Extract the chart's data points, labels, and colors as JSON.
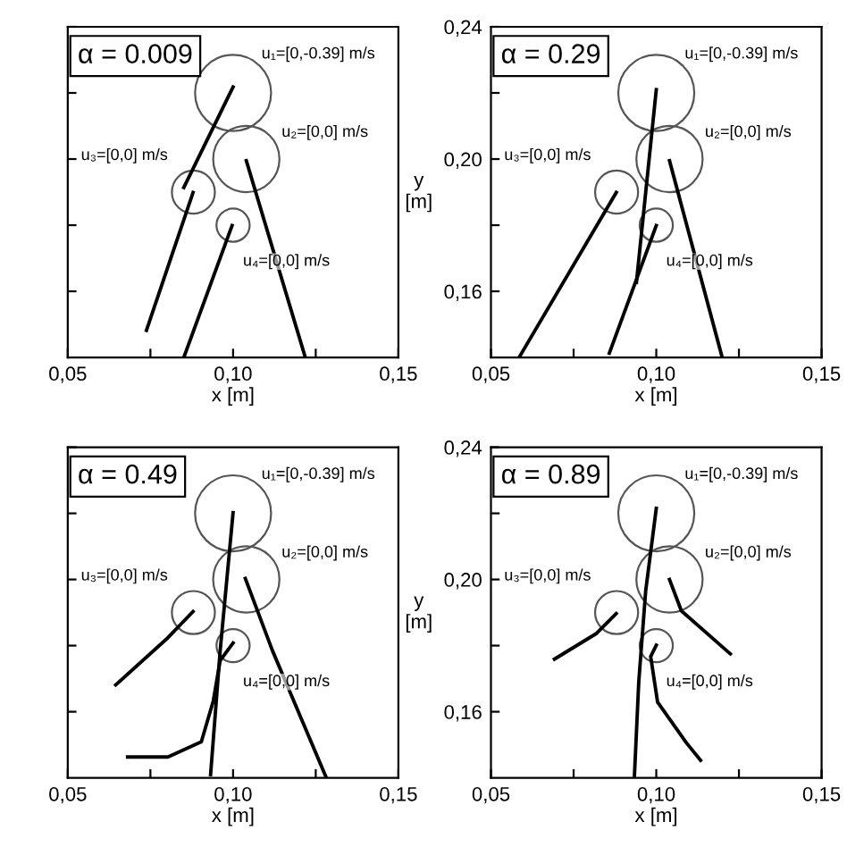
{
  "chart_data": [
    {
      "type": "line",
      "title": "α = 0.009",
      "xlabel": "x [m]",
      "tick_labels": "x",
      "xlim": [
        0.05,
        0.15
      ],
      "ylim": [
        0.14,
        0.24
      ],
      "xticks": [
        {
          "value": 0.05,
          "label": "0,05"
        },
        {
          "value": 0.075,
          "label": null
        },
        {
          "value": 0.1,
          "label": "0,10"
        },
        {
          "value": 0.125,
          "label": null
        },
        {
          "value": 0.15,
          "label": "0,15"
        }
      ],
      "yticks": [
        {
          "value": 0.16,
          "label": null
        },
        {
          "value": 0.18,
          "label": null
        },
        {
          "value": 0.2,
          "label": null
        },
        {
          "value": 0.22,
          "label": null
        },
        {
          "value": 0.24,
          "label": null
        }
      ],
      "series": [
        {
          "type": "bubble",
          "color": "#555555",
          "x": [
            0.1,
            0.104,
            0.088,
            0.1
          ],
          "values": [
            0.22,
            0.2,
            0.19,
            0.18
          ],
          "sizes": [
            1,
            0.76,
            0.32,
            0.19
          ]
        },
        {
          "color": "#000000",
          "x": [
            0.1,
            0.0851
          ],
          "values": [
            0.2218,
            0.1914
          ]
        },
        {
          "color": "#000000",
          "x": [
            0.104,
            0.1217
          ],
          "values": [
            0.1995,
            0.1405
          ]
        },
        {
          "color": "#000000",
          "x": [
            0.0879,
            0.0738
          ],
          "values": [
            0.1899,
            0.1482
          ]
        },
        {
          "color": "#000000",
          "x": [
            0.0997,
            0.0851
          ],
          "values": [
            0.1799,
            0.14
          ]
        }
      ],
      "annotations": [
        "u₁=[0,-0.39] m/s",
        "u₂=[0,0] m/s",
        "u₃=[0,0] m/s",
        "u₄=[0,0] m/s"
      ]
    },
    {
      "type": "line",
      "title": "α = 0.29",
      "xlabel": "x [m]",
      "ylabel": "y\n[m]",
      "xlim": [
        0.05,
        0.15
      ],
      "ylim": [
        0.14,
        0.24
      ],
      "xticks": [
        {
          "value": 0.05,
          "label": "0,05"
        },
        {
          "value": 0.075,
          "label": null
        },
        {
          "value": 0.1,
          "label": "0,10"
        },
        {
          "value": 0.125,
          "label": null
        },
        {
          "value": 0.15,
          "label": "0,15"
        }
      ],
      "yticks": [
        {
          "value": 0.16,
          "label": "0,16"
        },
        {
          "value": 0.18,
          "label": null
        },
        {
          "value": 0.2,
          "label": "0,20"
        },
        {
          "value": 0.22,
          "label": null
        },
        {
          "value": 0.24,
          "label": "0,24"
        }
      ],
      "series": [
        {
          "type": "bubble",
          "color": "#555555",
          "x": [
            0.1,
            0.104,
            0.088,
            0.1
          ],
          "values": [
            0.22,
            0.2,
            0.19,
            0.18
          ],
          "sizes": [
            1,
            0.76,
            0.32,
            0.19
          ]
        },
        {
          "color": "#000000",
          "x": [
            0.1,
            0.094
          ],
          "values": [
            0.221,
            0.1627
          ]
        },
        {
          "color": "#000000",
          "x": [
            0.104,
            0.1198
          ],
          "values": [
            0.1995,
            0.1405
          ]
        },
        {
          "color": "#000000",
          "x": [
            0.0879,
            0.0588
          ],
          "values": [
            0.1899,
            0.1405
          ]
        },
        {
          "color": "#000000",
          "x": [
            0.1,
            0.0858
          ],
          "values": [
            0.1799,
            0.1413
          ]
        }
      ],
      "annotations": [
        "u₁=[0,-0.39] m/s",
        "u₂=[0,0] m/s",
        "u₃=[0,0] m/s",
        "u₄=[0,0] m/s"
      ]
    },
    {
      "type": "line",
      "title": "α = 0.49",
      "xlabel": "x [m]",
      "tick_labels": "x",
      "xlim": [
        0.05,
        0.15
      ],
      "ylim": [
        0.14,
        0.24
      ],
      "xticks": [
        {
          "value": 0.05,
          "label": "0,05"
        },
        {
          "value": 0.075,
          "label": null
        },
        {
          "value": 0.1,
          "label": "0,10"
        },
        {
          "value": 0.125,
          "label": null
        },
        {
          "value": 0.15,
          "label": "0,15"
        }
      ],
      "yticks": [
        {
          "value": 0.16,
          "label": null
        },
        {
          "value": 0.18,
          "label": null
        },
        {
          "value": 0.2,
          "label": null
        },
        {
          "value": 0.22,
          "label": null
        },
        {
          "value": 0.24,
          "label": null
        }
      ],
      "series": [
        {
          "type": "bubble",
          "color": "#555555",
          "x": [
            0.1,
            0.104,
            0.088,
            0.1
          ],
          "values": [
            0.22,
            0.2,
            0.19,
            0.18
          ],
          "sizes": [
            1,
            0.76,
            0.32,
            0.19
          ]
        },
        {
          "color": "#000000",
          "x": [
            0.1,
            0.0961,
            0.0932
          ],
          "values": [
            0.2202,
            0.1785,
            0.141
          ]
        },
        {
          "color": "#000000",
          "x": [
            0.1037,
            0.1119,
            0.128
          ],
          "values": [
            0.2003,
            0.1785,
            0.1405
          ]
        },
        {
          "color": "#000000",
          "x": [
            0.0879,
            0.0803,
            0.0645
          ],
          "values": [
            0.1903,
            0.1824,
            0.1681
          ]
        },
        {
          "color": "#000000",
          "x": [
            0.1,
            0.0961,
            0.094,
            0.0904,
            0.0803,
            0.0681
          ],
          "values": [
            0.1808,
            0.1755,
            0.1632,
            0.1509,
            0.1463,
            0.1463
          ]
        }
      ],
      "annotations": [
        "u₁=[0,-0.39] m/s",
        "u₂=[0,0] m/s",
        "u₃=[0,0] m/s",
        "u₄=[0,0] m/s"
      ]
    },
    {
      "type": "line",
      "title": "α = 0.89",
      "xlabel": "x [m]",
      "ylabel": "y\n[m]",
      "xlim": [
        0.05,
        0.15
      ],
      "ylim": [
        0.14,
        0.24
      ],
      "xticks": [
        {
          "value": 0.05,
          "label": "0,05"
        },
        {
          "value": 0.075,
          "label": null
        },
        {
          "value": 0.1,
          "label": "0,10"
        },
        {
          "value": 0.125,
          "label": null
        },
        {
          "value": 0.15,
          "label": "0,15"
        }
      ],
      "yticks": [
        {
          "value": 0.16,
          "label": "0,16"
        },
        {
          "value": 0.18,
          "label": null
        },
        {
          "value": 0.2,
          "label": "0,20"
        },
        {
          "value": 0.22,
          "label": null
        },
        {
          "value": 0.24,
          "label": "0,24"
        }
      ],
      "series": [
        {
          "type": "bubble",
          "color": "#555555",
          "x": [
            0.1,
            0.104,
            0.088,
            0.1
          ],
          "values": [
            0.22,
            0.2,
            0.19,
            0.18
          ],
          "sizes": [
            1,
            0.76,
            0.32,
            0.19
          ]
        },
        {
          "color": "#000000",
          "x": [
            0.1,
            0.0968,
            0.0947,
            0.0934
          ],
          "values": [
            0.2215,
            0.1966,
            0.169,
            0.1407
          ]
        },
        {
          "color": "#000000",
          "x": [
            0.104,
            0.1076,
            0.1224
          ],
          "values": [
            0.2,
            0.1905,
            0.1775
          ]
        },
        {
          "color": "#000000",
          "x": [
            0.0879,
            0.0818,
            0.0692
          ],
          "values": [
            0.1897,
            0.1836,
            0.1759
          ]
        },
        {
          "color": "#000000",
          "x": [
            0.1,
            0.0983,
            0.1004,
            0.1091,
            0.1134
          ],
          "values": [
            0.1801,
            0.1767,
            0.1629,
            0.1506,
            0.1453
          ]
        }
      ],
      "annotations": [
        "u₁=[0,-0.39] m/s",
        "u₂=[0,0] m/s",
        "u₃=[0,0] m/s",
        "u₄=[0,0] m/s"
      ]
    }
  ]
}
